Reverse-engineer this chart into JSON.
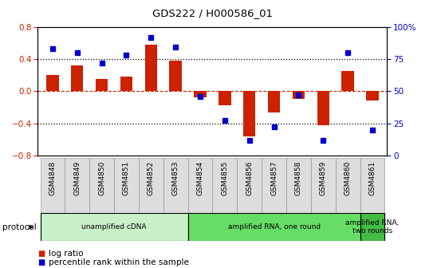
{
  "title": "GDS222 / H000586_01",
  "categories": [
    "GSM4848",
    "GSM4849",
    "GSM4850",
    "GSM4851",
    "GSM4852",
    "GSM4853",
    "GSM4854",
    "GSM4855",
    "GSM4856",
    "GSM4857",
    "GSM4858",
    "GSM4859",
    "GSM4860",
    "GSM4861"
  ],
  "log_ratio": [
    0.2,
    0.32,
    0.15,
    0.18,
    0.58,
    0.38,
    -0.08,
    -0.18,
    -0.56,
    -0.27,
    -0.1,
    -0.42,
    0.25,
    -0.12
  ],
  "percentile_rank": [
    83,
    80,
    72,
    78,
    92,
    84,
    46,
    27,
    12,
    22,
    47,
    12,
    80,
    20
  ],
  "bar_color": "#cc2200",
  "dot_color": "#0000cc",
  "ylim_left": [
    -0.8,
    0.8
  ],
  "ylim_right": [
    0,
    100
  ],
  "yticks_left": [
    -0.8,
    -0.4,
    0.0,
    0.4,
    0.8
  ],
  "yticks_right": [
    0,
    25,
    50,
    75,
    100
  ],
  "ytick_labels_right": [
    "0",
    "25",
    "50",
    "75",
    "100%"
  ],
  "protocol_groups": [
    {
      "label": "unamplified cDNA",
      "start": 0,
      "end": 5,
      "color": "#c8f0c8"
    },
    {
      "label": "amplified RNA, one round",
      "start": 6,
      "end": 12,
      "color": "#66dd66"
    },
    {
      "label": "amplified RNA,\ntwo rounds",
      "start": 13,
      "end": 13,
      "color": "#44bb44"
    }
  ],
  "tick_color_left": "#cc2200",
  "tick_color_right": "#0000cc",
  "bar_width": 0.5
}
